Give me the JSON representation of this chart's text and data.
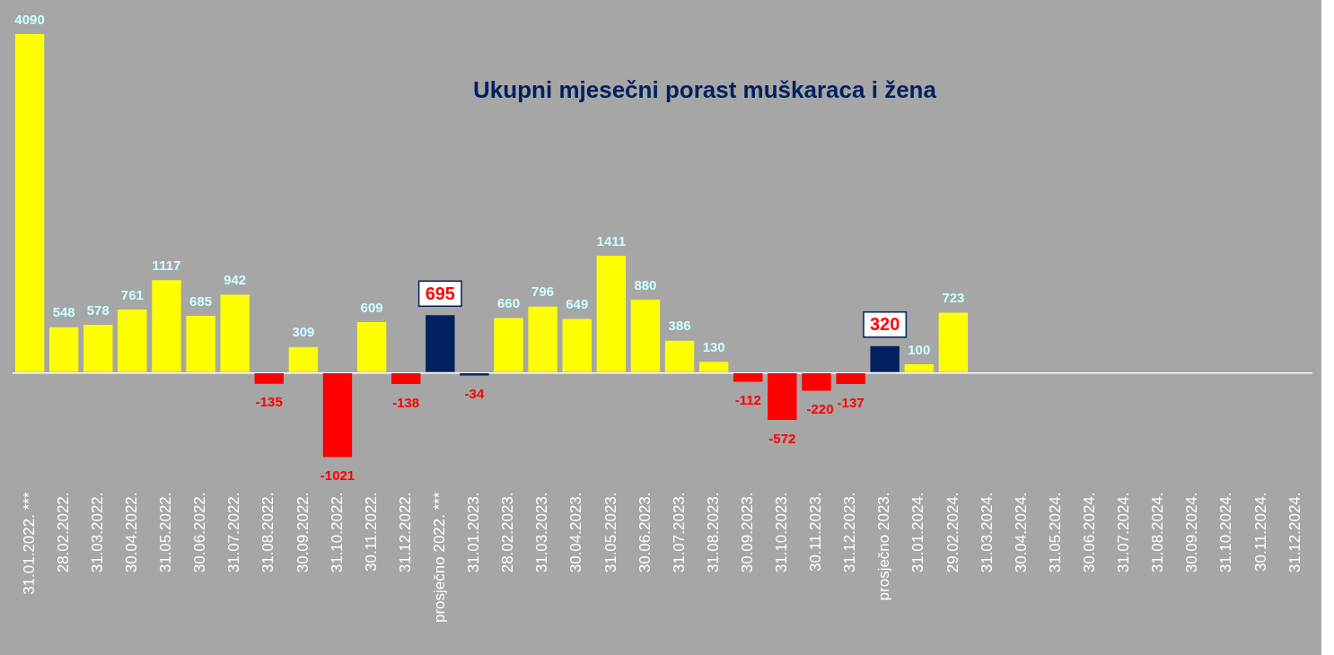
{
  "chart_data": {
    "type": "bar",
    "title": "Ukupni mjesečni porast muškaraca i žena",
    "categories": [
      "31.01.2022. ***",
      "28.02.2022.",
      "31.03.2022.",
      "30.04.2022.",
      "31.05.2022.",
      "30.06.2022.",
      "31.07.2022.",
      "31.08.2022.",
      "30.09.2022.",
      "31.10.2022.",
      "30.11.2022.",
      "31.12.2022.",
      "prosječno 2022. ***",
      "31.01.2023.",
      "28.02.2023.",
      "31.03.2023.",
      "30.04.2023.",
      "31.05.2023.",
      "30.06.2023.",
      "31.07.2023.",
      "31.08.2023.",
      "30.09.2023.",
      "31.10.2023.",
      "30.11.2023.",
      "31.12.2023.",
      "prosječno 2023.",
      "31.01.2024.",
      "29.02.2024.",
      "31.03.2024.",
      "30.04.2024.",
      "31.05.2024.",
      "30.06.2024.",
      "31.07.2024.",
      "31.08.2024.",
      "30.09.2024.",
      "31.10.2024.",
      "30.11.2024.",
      "31.12.2024."
    ],
    "values": [
      4090,
      548,
      578,
      761,
      1117,
      685,
      942,
      -135,
      309,
      -1021,
      609,
      -138,
      695,
      -34,
      660,
      796,
      649,
      1411,
      880,
      386,
      130,
      -112,
      -572,
      -220,
      -137,
      320,
      100,
      723,
      null,
      null,
      null,
      null,
      null,
      null,
      null,
      null,
      null,
      null
    ],
    "colors": [
      "#ffff00",
      "#ffff00",
      "#ffff00",
      "#ffff00",
      "#ffff00",
      "#ffff00",
      "#ffff00",
      "#ff0000",
      "#ffff00",
      "#ff0000",
      "#ffff00",
      "#ff0000",
      "#002060",
      "#002060",
      "#ffff00",
      "#ffff00",
      "#ffff00",
      "#ffff00",
      "#ffff00",
      "#ffff00",
      "#ffff00",
      "#ff0000",
      "#ff0000",
      "#ff0000",
      "#ff0000",
      "#002060",
      "#ffff00",
      "#ffff00",
      "#ffff00",
      "#ffff00",
      "#ffff00",
      "#ffff00",
      "#ffff00",
      "#ffff00",
      "#ffff00",
      "#ffff00",
      "#ffff00",
      "#ffff00"
    ],
    "data_labels": true,
    "grid": false,
    "legend": false
  }
}
